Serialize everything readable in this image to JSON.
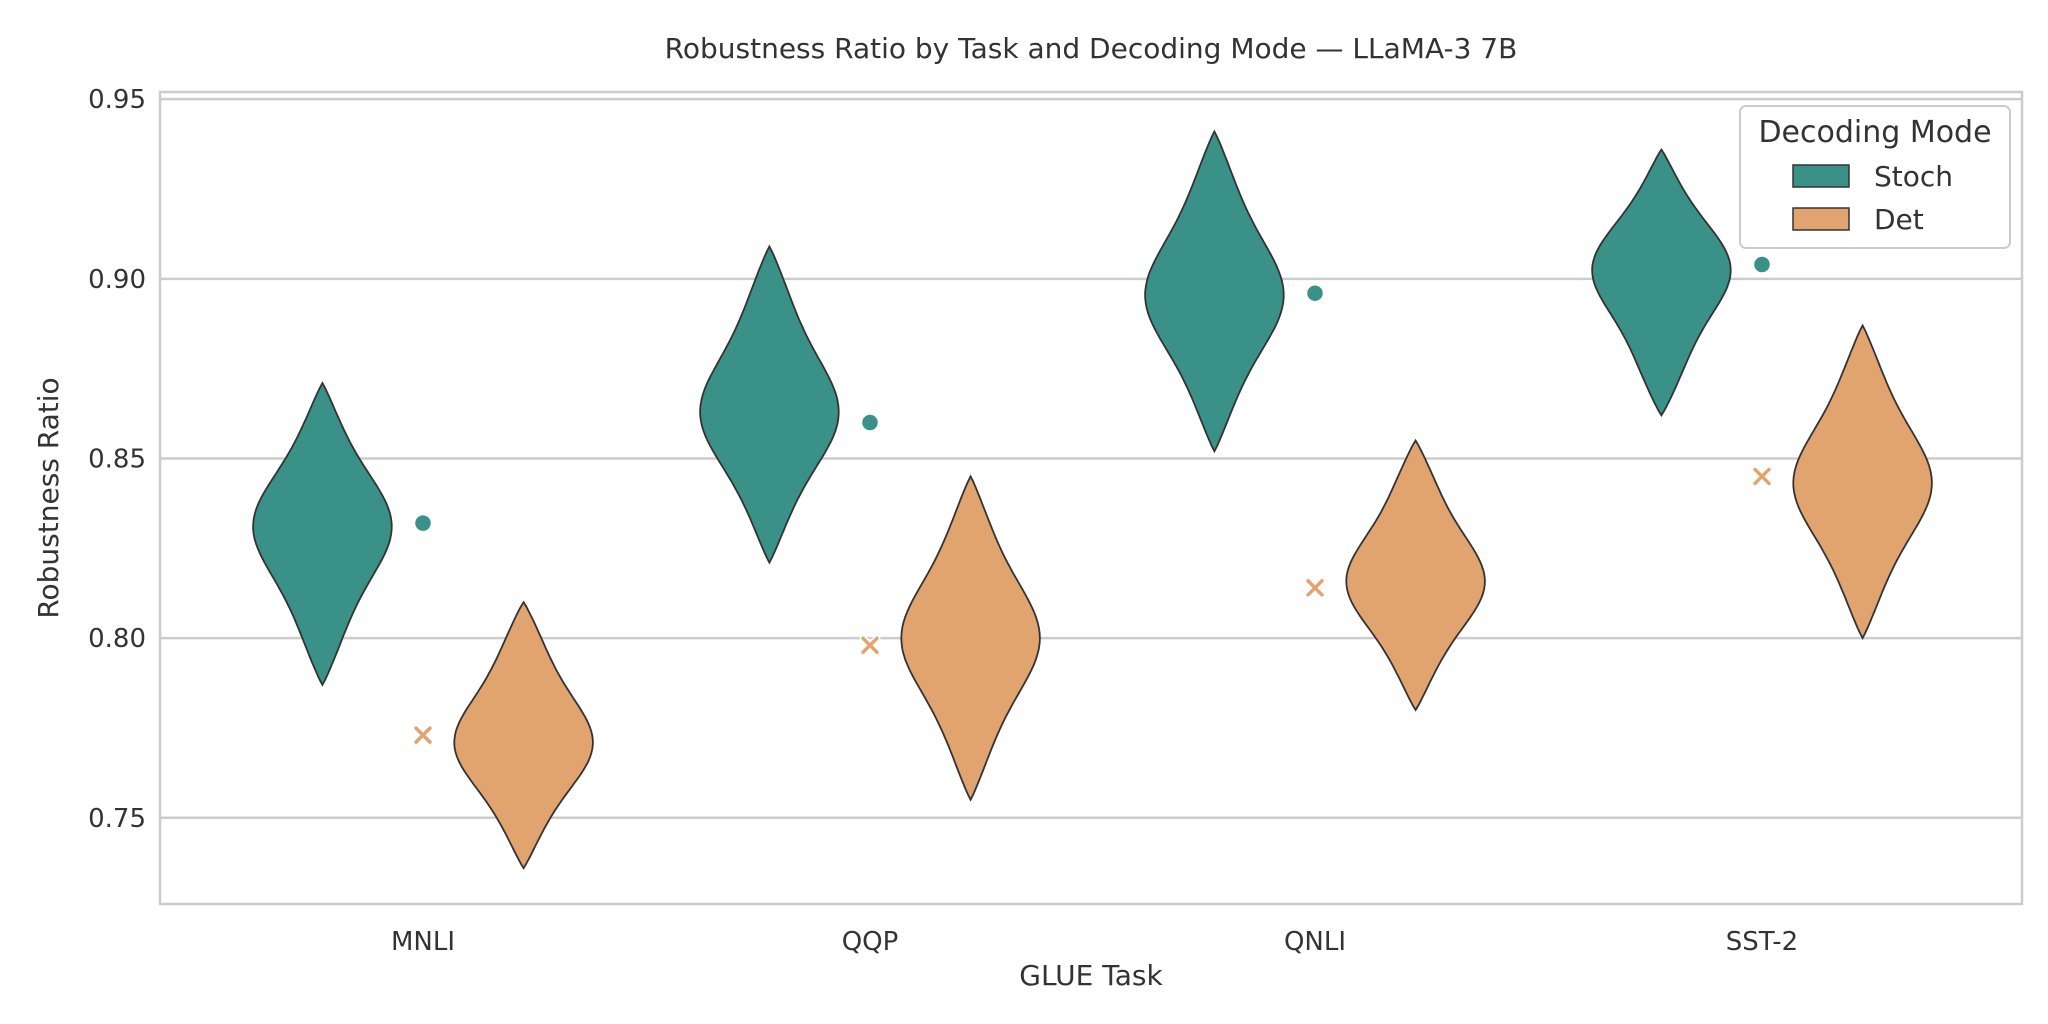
{
  "chart_data": {
    "type": "violin",
    "title": "Robustness Ratio by Task and Decoding Mode — LLaMA-3 7B",
    "xlabel": "GLUE Task",
    "ylabel": "Robustness Ratio",
    "categories": [
      "MNLI",
      "QQP",
      "QNLI",
      "SST-2"
    ],
    "ylim": [
      0.726,
      0.952
    ],
    "yticks": [
      0.75,
      0.8,
      0.85,
      0.9,
      0.95
    ],
    "ytick_labels": [
      "0.75",
      "0.80",
      "0.85",
      "0.90",
      "0.95"
    ],
    "grid": true,
    "legend": {
      "title": "Decoding Mode",
      "placement": "top-right"
    },
    "series": [
      {
        "name": "Stoch",
        "color": "#3a9187",
        "marker": "circle",
        "violins": [
          {
            "min": 0.787,
            "max": 0.871,
            "mode": 0.832,
            "half_width": 0.31,
            "mean": 0.832
          },
          {
            "min": 0.821,
            "max": 0.909,
            "mode": 0.862,
            "half_width": 0.31,
            "mean": 0.86
          },
          {
            "min": 0.852,
            "max": 0.941,
            "mode": 0.895,
            "half_width": 0.31,
            "mean": 0.896
          },
          {
            "min": 0.862,
            "max": 0.936,
            "mode": 0.904,
            "half_width": 0.31,
            "mean": 0.904
          }
        ]
      },
      {
        "name": "Det",
        "color": "#e2a46f",
        "marker": "x",
        "violins": [
          {
            "min": 0.736,
            "max": 0.81,
            "mode": 0.77,
            "half_width": 0.31,
            "mean": 0.773
          },
          {
            "min": 0.755,
            "max": 0.845,
            "mode": 0.8,
            "half_width": 0.31,
            "mean": 0.798
          },
          {
            "min": 0.78,
            "max": 0.855,
            "mode": 0.815,
            "half_width": 0.31,
            "mean": 0.814
          },
          {
            "min": 0.8,
            "max": 0.887,
            "mode": 0.843,
            "half_width": 0.31,
            "mean": 0.845
          }
        ]
      }
    ]
  }
}
